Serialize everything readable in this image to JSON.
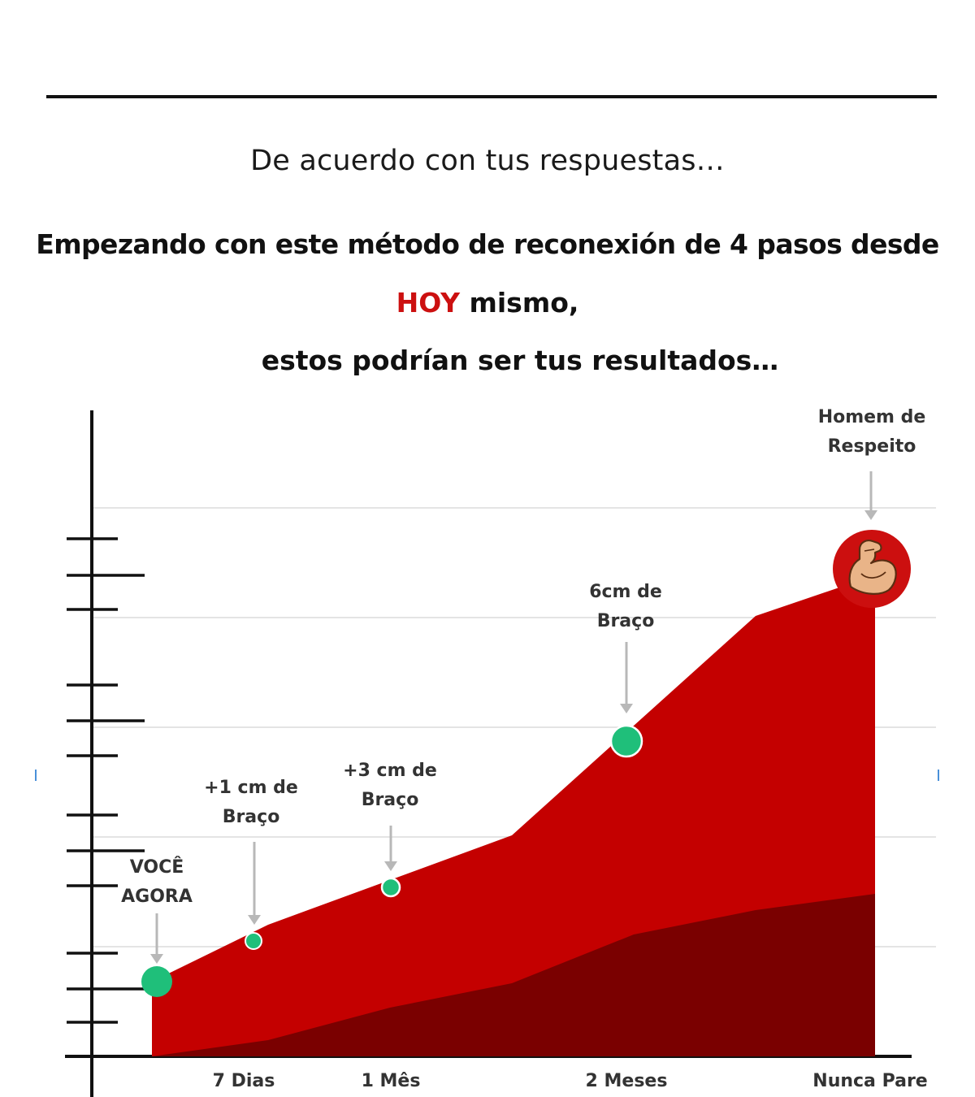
{
  "header": {
    "subtitle": "De acuerdo con tus respuestas…",
    "headline_line1": "Empezando con este método de reconexión de 4 pasos desde",
    "headline_hoy": "HOY",
    "headline_line2_rest": "mismo,",
    "headline_line3": "estos podrían ser tus resultados…"
  },
  "colors": {
    "accent_red": "#cc1010",
    "area_red": "#c40000",
    "area_dark": "#7a0000",
    "milestone_green": "#1fbf7a",
    "badge_red": "#cc0f0f"
  },
  "chart_data": {
    "type": "area",
    "categories": [
      "7 Dias",
      "1 Mês",
      "2 Meses",
      "Nunca Pare"
    ],
    "milestones": [
      {
        "label_lines": [
          "VOCÊ",
          "AGORA"
        ],
        "marker": "green-dot-large"
      },
      {
        "label_lines": [
          "+1 cm de",
          "Braço"
        ],
        "marker": "green-dot-small"
      },
      {
        "label_lines": [
          "+3 cm de",
          "Braço"
        ],
        "marker": "green-dot-small"
      },
      {
        "label_lines": [
          "6cm de",
          "Braço"
        ],
        "marker": "green-dot-large"
      },
      {
        "label_lines": [
          "Homem de",
          "Respeito"
        ],
        "marker": "bicep-icon"
      }
    ],
    "grid": true,
    "icon": "flexed-bicep-icon"
  }
}
